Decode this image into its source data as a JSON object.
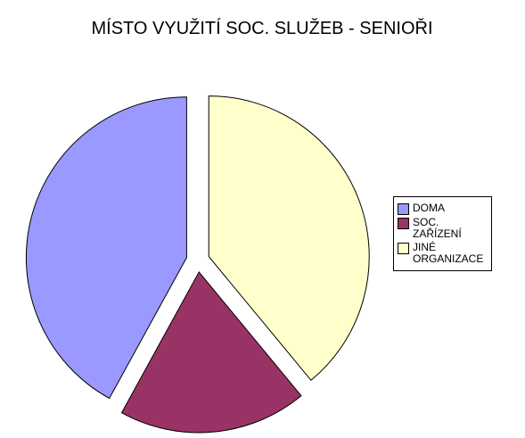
{
  "chart_data": {
    "type": "pie",
    "title": "MÍSTO VYUŽITÍ SOC. SLUŽEB - SENIOŘI",
    "categories": [
      "DOMA",
      "SOC. ZAŘÍZENÍ",
      "JINÉ ORGANIZACE"
    ],
    "values": [
      42,
      19,
      39
    ],
    "colors": [
      "#9999ff",
      "#993366",
      "#ffffcc"
    ],
    "legend": "right"
  }
}
